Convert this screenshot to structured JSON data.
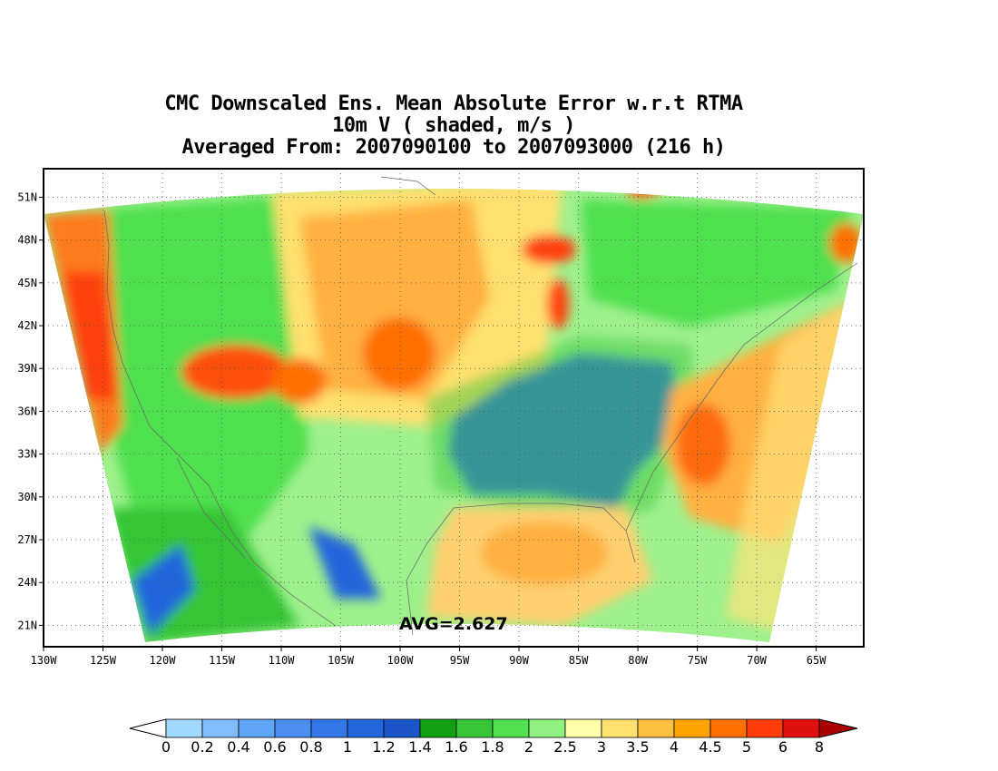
{
  "title": {
    "line1": "CMC Downscaled Ens. Mean Absolute Error w.r.t RTMA",
    "line2": "10m V ( shaded, m/s )",
    "line3": "Averaged From: 2007090100 to 2007093000 (216 h)"
  },
  "map": {
    "lon_range": [
      -130,
      -61
    ],
    "lat_range": [
      19.5,
      53
    ],
    "lon_ticks": [
      "130W",
      "125W",
      "120W",
      "115W",
      "110W",
      "105W",
      "100W",
      "95W",
      "90W",
      "85W",
      "80W",
      "75W",
      "70W",
      "65W"
    ],
    "lat_ticks": [
      "21N",
      "24N",
      "27N",
      "30N",
      "33N",
      "36N",
      "39N",
      "42N",
      "45N",
      "48N",
      "51N"
    ],
    "grid": "dotted",
    "average_label": "AVG=2.627",
    "fields": [
      {
        "region": "ocean-domain",
        "color": "#c6f5a0"
      },
      {
        "region": "pacific-coast-nw",
        "color": "#ff6622"
      },
      {
        "region": "great-plains",
        "color": "#ffd066"
      },
      {
        "region": "southeast-us",
        "color": "#3366ee"
      },
      {
        "region": "atlantic-offshore",
        "color": "#ffb040"
      },
      {
        "region": "gulf-of-mexico",
        "color": "#ffe27a"
      },
      {
        "region": "mexico-pacific",
        "color": "#55dd55"
      }
    ]
  },
  "colorbar": {
    "labels": [
      "0",
      "0.2",
      "0.4",
      "0.6",
      "0.8",
      "1",
      "1.2",
      "1.4",
      "1.6",
      "1.8",
      "2",
      "2.5",
      "3",
      "3.5",
      "4",
      "4.5",
      "5",
      "6",
      "8"
    ],
    "colors": [
      "#a0d8ff",
      "#80bcff",
      "#5fa4f5",
      "#4a8ef0",
      "#3478e8",
      "#2466dd",
      "#1c55c8",
      "#12a112",
      "#36c536",
      "#50e050",
      "#90f080",
      "#ffffaa",
      "#ffe070",
      "#ffc040",
      "#ffa300",
      "#ff7000",
      "#ff3c0a",
      "#e01010",
      "#aa0000"
    ],
    "under_color": "#ffffff",
    "over_color": "#aa0000"
  }
}
